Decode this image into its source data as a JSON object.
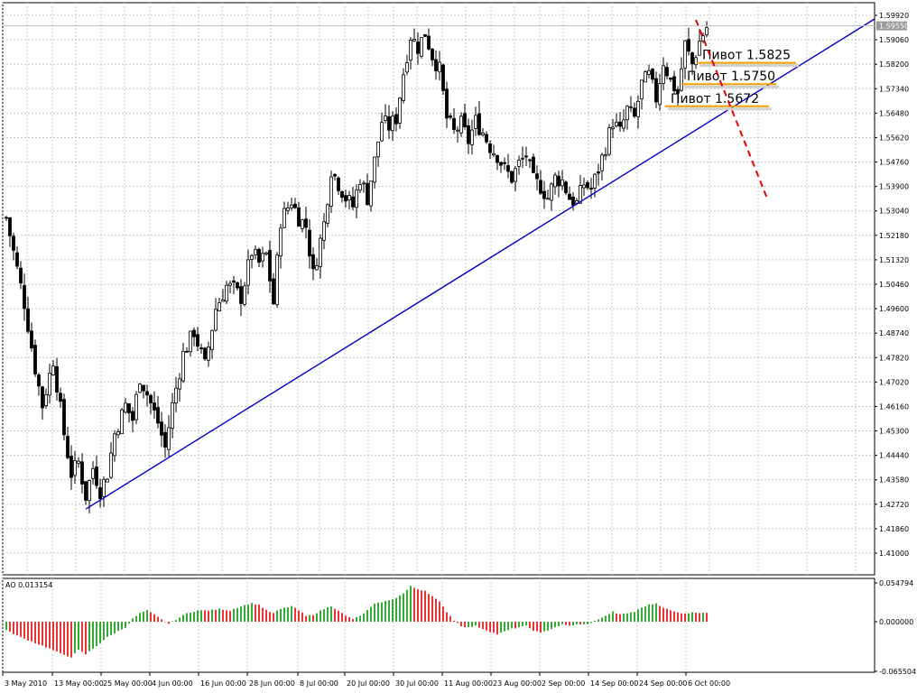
{
  "chart_data": [
    {
      "type": "candlestick",
      "ylim": [
        1.4049,
        1.6028
      ],
      "y_ticks": [
        "1.59920",
        "1.59060",
        "1.58200",
        "1.57340",
        "1.56480",
        "1.55620",
        "1.54760",
        "1.53900",
        "1.53040",
        "1.52180",
        "1.51320",
        "1.50460",
        "1.49600",
        "1.48740",
        "1.47820",
        "1.47020",
        "1.46160",
        "1.45300",
        "1.44440",
        "1.43580",
        "1.42720",
        "1.41860",
        "1.41000"
      ],
      "current_price": "1.59550",
      "x_labels": [
        "3 May 2010",
        "13 May 00:00",
        "25 May 00:00",
        "4 Jun 00:00",
        "16 Jun 00:00",
        "28 Jun 00:00",
        "8 Jul 00:00",
        "20 Jul 00:00",
        "30 Jul 00:00",
        "11 Aug 00:00",
        "23 Aug 00:00",
        "2 Sep 00:00",
        "14 Sep 00:00",
        "24 Sep 00:00",
        "6 Oct 00:00"
      ],
      "bar_count": 195,
      "close_path": [
        [
          0,
          1.528
        ],
        [
          5,
          1.498
        ],
        [
          8,
          1.475
        ],
        [
          10,
          1.462
        ],
        [
          13,
          1.478
        ],
        [
          16,
          1.452
        ],
        [
          18,
          1.438
        ],
        [
          20,
          1.442
        ],
        [
          22,
          1.43
        ],
        [
          24,
          1.44
        ],
        [
          26,
          1.432
        ],
        [
          28,
          1.438
        ],
        [
          30,
          1.452
        ],
        [
          33,
          1.462
        ],
        [
          35,
          1.457
        ],
        [
          37,
          1.472
        ],
        [
          39,
          1.466
        ],
        [
          42,
          1.456
        ],
        [
          44,
          1.447
        ],
        [
          46,
          1.462
        ],
        [
          49,
          1.48
        ],
        [
          52,
          1.488
        ],
        [
          55,
          1.476
        ],
        [
          58,
          1.496
        ],
        [
          61,
          1.504
        ],
        [
          63,
          1.503
        ],
        [
          65,
          1.5
        ],
        [
          68,
          1.516
        ],
        [
          70,
          1.512
        ],
        [
          72,
          1.515
        ],
        [
          74,
          1.498
        ],
        [
          76,
          1.527
        ],
        [
          79,
          1.534
        ],
        [
          81,
          1.528
        ],
        [
          83,
          1.525
        ],
        [
          85,
          1.508
        ],
        [
          88,
          1.526
        ],
        [
          90,
          1.545
        ],
        [
          92,
          1.54
        ],
        [
          94,
          1.535
        ],
        [
          96,
          1.532
        ],
        [
          98,
          1.542
        ],
        [
          100,
          1.535
        ],
        [
          102,
          1.548
        ],
        [
          104,
          1.562
        ],
        [
          106,
          1.56
        ],
        [
          108,
          1.563
        ],
        [
          110,
          1.579
        ],
        [
          112,
          1.592
        ],
        [
          114,
          1.588
        ],
        [
          116,
          1.593
        ],
        [
          118,
          1.585
        ],
        [
          120,
          1.58
        ],
        [
          122,
          1.563
        ],
        [
          124,
          1.558
        ],
        [
          126,
          1.561
        ],
        [
          128,
          1.555
        ],
        [
          130,
          1.562
        ],
        [
          132,
          1.558
        ],
        [
          134,
          1.553
        ],
        [
          136,
          1.55
        ],
        [
          138,
          1.545
        ],
        [
          140,
          1.542
        ],
        [
          142,
          1.547
        ],
        [
          144,
          1.55
        ],
        [
          146,
          1.541
        ],
        [
          148,
          1.539
        ],
        [
          150,
          1.535
        ],
        [
          152,
          1.542
        ],
        [
          154,
          1.541
        ],
        [
          156,
          1.535
        ],
        [
          158,
          1.533
        ],
        [
          160,
          1.54
        ],
        [
          162,
          1.538
        ],
        [
          164,
          1.545
        ],
        [
          166,
          1.553
        ],
        [
          168,
          1.562
        ],
        [
          170,
          1.558
        ],
        [
          172,
          1.566
        ],
        [
          174,
          1.563
        ],
        [
          176,
          1.575
        ],
        [
          178,
          1.578
        ],
        [
          180,
          1.57
        ],
        [
          182,
          1.583
        ],
        [
          184,
          1.576
        ],
        [
          186,
          1.572
        ],
        [
          188,
          1.589
        ],
        [
          190,
          1.582
        ],
        [
          192,
          1.59
        ],
        [
          194,
          1.595
        ]
      ],
      "trendline": {
        "start": [
          22,
          1.4255
        ],
        "end_label": "projects to top-right"
      },
      "forecast_dashed": {
        "start": [
          191,
          1.5976
        ],
        "end_slot": 211,
        "end_value": 1.534
      },
      "pivots": [
        {
          "label": "Пивот 1.5825",
          "value": 1.5825
        },
        {
          "label": "Пивот 1.5750",
          "value": 1.575
        },
        {
          "label": "Пивот 1.5672",
          "value": 1.5672
        }
      ]
    },
    {
      "type": "bar",
      "title": "AO 0.013154",
      "y_ticks": [
        "0.054794",
        "0.000000",
        "-0.065504"
      ],
      "ylim": [
        -0.0655,
        0.0548
      ],
      "ao_path": [
        [
          0,
          -0.012
        ],
        [
          4,
          -0.022
        ],
        [
          8,
          -0.03
        ],
        [
          12,
          -0.038
        ],
        [
          15,
          -0.045
        ],
        [
          18,
          -0.05
        ],
        [
          20,
          -0.04
        ],
        [
          22,
          -0.046
        ],
        [
          24,
          -0.038
        ],
        [
          26,
          -0.03
        ],
        [
          28,
          -0.022
        ],
        [
          30,
          -0.016
        ],
        [
          33,
          -0.008
        ],
        [
          35,
          0.004
        ],
        [
          37,
          0.012
        ],
        [
          39,
          0.016
        ],
        [
          41,
          0.01
        ],
        [
          43,
          0.003
        ],
        [
          45,
          -0.003
        ],
        [
          47,
          0.003
        ],
        [
          50,
          0.012
        ],
        [
          53,
          0.016
        ],
        [
          56,
          0.016
        ],
        [
          59,
          0.018
        ],
        [
          62,
          0.016
        ],
        [
          65,
          0.022
        ],
        [
          68,
          0.026
        ],
        [
          70,
          0.024
        ],
        [
          72,
          0.016
        ],
        [
          74,
          0.012
        ],
        [
          76,
          0.018
        ],
        [
          79,
          0.022
        ],
        [
          81,
          0.016
        ],
        [
          83,
          0.008
        ],
        [
          85,
          0.01
        ],
        [
          88,
          0.018
        ],
        [
          90,
          0.022
        ],
        [
          92,
          0.016
        ],
        [
          94,
          0.008
        ],
        [
          96,
          0.004
        ],
        [
          98,
          0.008
        ],
        [
          100,
          0.016
        ],
        [
          102,
          0.025
        ],
        [
          104,
          0.028
        ],
        [
          106,
          0.03
        ],
        [
          108,
          0.034
        ],
        [
          110,
          0.04
        ],
        [
          112,
          0.05
        ],
        [
          114,
          0.046
        ],
        [
          116,
          0.044
        ],
        [
          118,
          0.036
        ],
        [
          120,
          0.028
        ],
        [
          122,
          0.014
        ],
        [
          124,
          0.002
        ],
        [
          126,
          -0.006
        ],
        [
          128,
          -0.008
        ],
        [
          130,
          -0.006
        ],
        [
          132,
          -0.01
        ],
        [
          134,
          -0.014
        ],
        [
          136,
          -0.018
        ],
        [
          138,
          -0.014
        ],
        [
          140,
          -0.01
        ],
        [
          142,
          -0.008
        ],
        [
          144,
          -0.006
        ],
        [
          146,
          -0.012
        ],
        [
          148,
          -0.016
        ],
        [
          150,
          -0.012
        ],
        [
          152,
          -0.008
        ],
        [
          154,
          -0.004
        ],
        [
          156,
          -0.006
        ],
        [
          158,
          -0.004
        ],
        [
          160,
          -0.004
        ],
        [
          162,
          -0.002
        ],
        [
          164,
          0.004
        ],
        [
          166,
          0.008
        ],
        [
          168,
          0.014
        ],
        [
          170,
          0.01
        ],
        [
          172,
          0.012
        ],
        [
          174,
          0.014
        ],
        [
          176,
          0.02
        ],
        [
          178,
          0.024
        ],
        [
          180,
          0.026
        ],
        [
          182,
          0.02
        ],
        [
          184,
          0.016
        ],
        [
          186,
          0.013
        ],
        [
          188,
          0.012
        ],
        [
          190,
          0.013
        ],
        [
          194,
          0.013
        ]
      ],
      "colors": {
        "up": "#009600",
        "down": "#e60000"
      }
    }
  ],
  "colors": {
    "grid": "#c8c8c8",
    "candle": "#000000",
    "trendline": "#0000cc",
    "forecast": "#e60000",
    "pivot": "#f5a000",
    "pivot_shadow": "#d0d0d0",
    "badge": "#9a9a9a"
  }
}
